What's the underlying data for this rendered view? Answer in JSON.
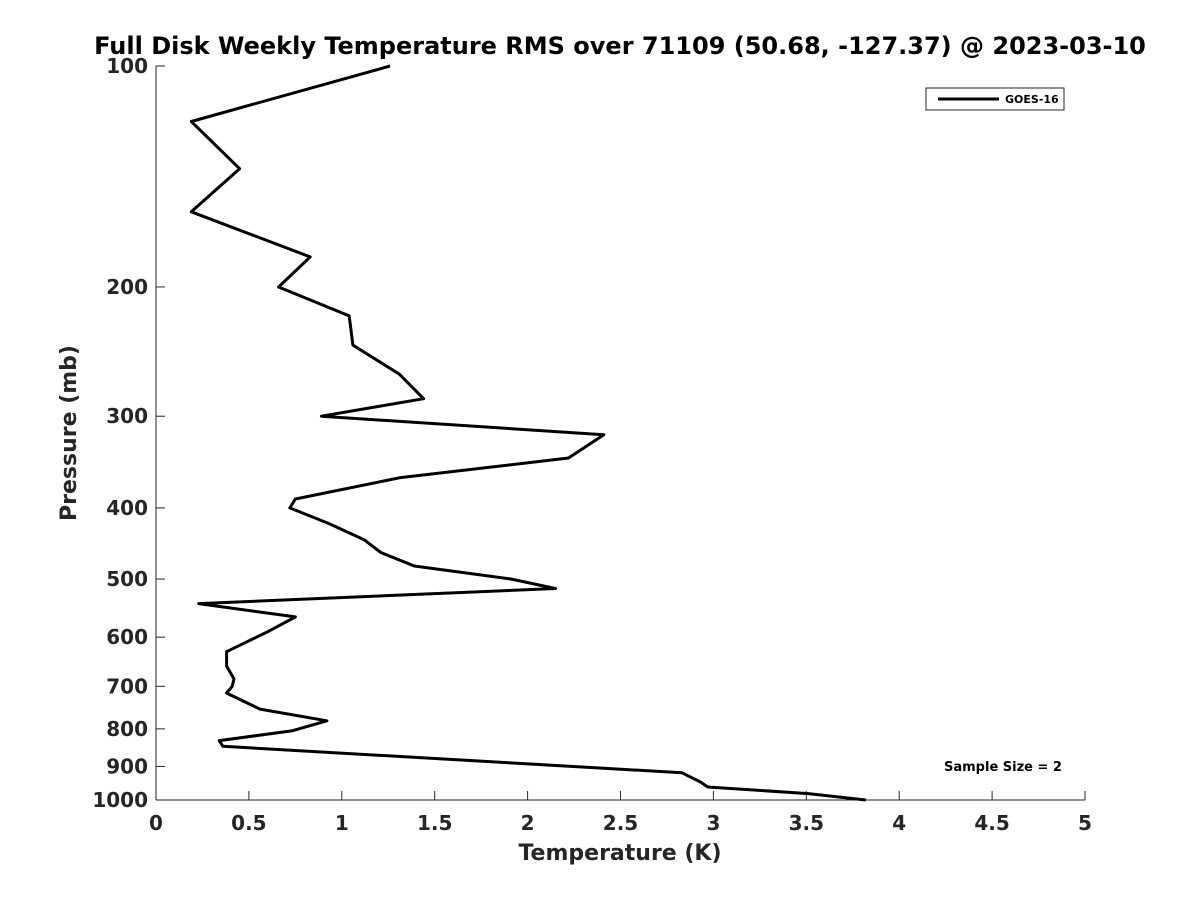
{
  "chart_data": {
    "type": "line",
    "title": "Full Disk Weekly Temperature RMS over 71109 (50.68, -127.37) @ 2023-03-10",
    "xlabel": "Temperature (K)",
    "ylabel": "Pressure (mb)",
    "xlim": [
      0,
      5
    ],
    "ylim": [
      1000,
      100
    ],
    "y_scale": "log",
    "y_reversed": true,
    "x_ticks": [
      "0",
      "0.5",
      "1",
      "1.5",
      "2",
      "2.5",
      "3",
      "3.5",
      "4",
      "4.5",
      "5"
    ],
    "y_ticks": [
      "100",
      "200",
      "300",
      "400",
      "500",
      "600",
      "700",
      "800",
      "900",
      "1000"
    ],
    "grid": false,
    "legend_position": "top-right",
    "annotation": "Sample Size = 2",
    "series": [
      {
        "name": "GOES-16",
        "color": "#000000",
        "points": [
          {
            "x": 1.26,
            "p": 100
          },
          {
            "x": 0.19,
            "p": 119
          },
          {
            "x": 0.45,
            "p": 138
          },
          {
            "x": 0.19,
            "p": 158
          },
          {
            "x": 0.83,
            "p": 182
          },
          {
            "x": 0.66,
            "p": 200
          },
          {
            "x": 1.04,
            "p": 219
          },
          {
            "x": 1.06,
            "p": 240
          },
          {
            "x": 1.31,
            "p": 263
          },
          {
            "x": 1.44,
            "p": 284
          },
          {
            "x": 0.89,
            "p": 300
          },
          {
            "x": 2.41,
            "p": 318
          },
          {
            "x": 2.22,
            "p": 342
          },
          {
            "x": 1.31,
            "p": 364
          },
          {
            "x": 0.75,
            "p": 389
          },
          {
            "x": 0.72,
            "p": 400
          },
          {
            "x": 0.93,
            "p": 420
          },
          {
            "x": 1.12,
            "p": 442
          },
          {
            "x": 1.21,
            "p": 460
          },
          {
            "x": 1.39,
            "p": 480
          },
          {
            "x": 1.91,
            "p": 500
          },
          {
            "x": 2.15,
            "p": 515
          },
          {
            "x": 0.23,
            "p": 540
          },
          {
            "x": 0.75,
            "p": 563
          },
          {
            "x": 0.6,
            "p": 590
          },
          {
            "x": 0.38,
            "p": 628
          },
          {
            "x": 0.38,
            "p": 657
          },
          {
            "x": 0.42,
            "p": 684
          },
          {
            "x": 0.41,
            "p": 700
          },
          {
            "x": 0.38,
            "p": 715
          },
          {
            "x": 0.56,
            "p": 752
          },
          {
            "x": 0.92,
            "p": 780
          },
          {
            "x": 0.73,
            "p": 805
          },
          {
            "x": 0.34,
            "p": 830
          },
          {
            "x": 0.36,
            "p": 845
          },
          {
            "x": 2.83,
            "p": 918
          },
          {
            "x": 2.93,
            "p": 945
          },
          {
            "x": 2.97,
            "p": 960
          },
          {
            "x": 3.51,
            "p": 980
          },
          {
            "x": 3.82,
            "p": 1000
          }
        ]
      }
    ]
  }
}
